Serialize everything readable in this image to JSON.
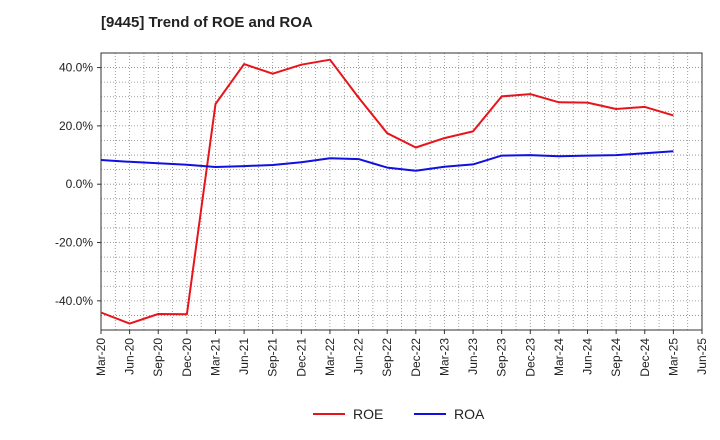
{
  "chart_data": {
    "type": "line",
    "title": "[9445]  Trend of ROE and ROA",
    "xlabel": "",
    "ylabel": "",
    "categories": [
      "Mar-20",
      "Jun-20",
      "Sep-20",
      "Dec-20",
      "Mar-21",
      "Jun-21",
      "Sep-21",
      "Dec-21",
      "Mar-22",
      "Jun-22",
      "Sep-22",
      "Dec-22",
      "Mar-23",
      "Jun-23",
      "Sep-23",
      "Dec-23",
      "Mar-24",
      "Jun-24",
      "Sep-24",
      "Dec-24",
      "Mar-25",
      "Jun-25"
    ],
    "y_ticks": [
      "40.0%",
      "20.0%",
      "0.0%",
      "-20.0%",
      "-40.0%"
    ],
    "y_tick_values": [
      40,
      20,
      0,
      -20,
      -40
    ],
    "ylim": [
      -50,
      45
    ],
    "grid": true,
    "legend_position": "bottom-center",
    "series": [
      {
        "name": "ROE",
        "color": "#e8141b",
        "values": [
          -44.0,
          -47.8,
          -44.5,
          -44.6,
          27.5,
          41.2,
          37.9,
          41.0,
          42.7,
          29.7,
          17.5,
          12.6,
          15.8,
          18.1,
          30.1,
          30.9,
          28.1,
          28.0,
          25.8,
          26.5,
          23.6,
          null
        ]
      },
      {
        "name": "ROA",
        "color": "#1010e0",
        "values": [
          8.3,
          7.7,
          7.2,
          6.7,
          5.9,
          6.2,
          6.6,
          7.5,
          8.9,
          8.6,
          5.7,
          4.6,
          6.0,
          6.8,
          9.8,
          10.0,
          9.6,
          9.8,
          10.0,
          10.6,
          11.3,
          null
        ]
      }
    ]
  }
}
